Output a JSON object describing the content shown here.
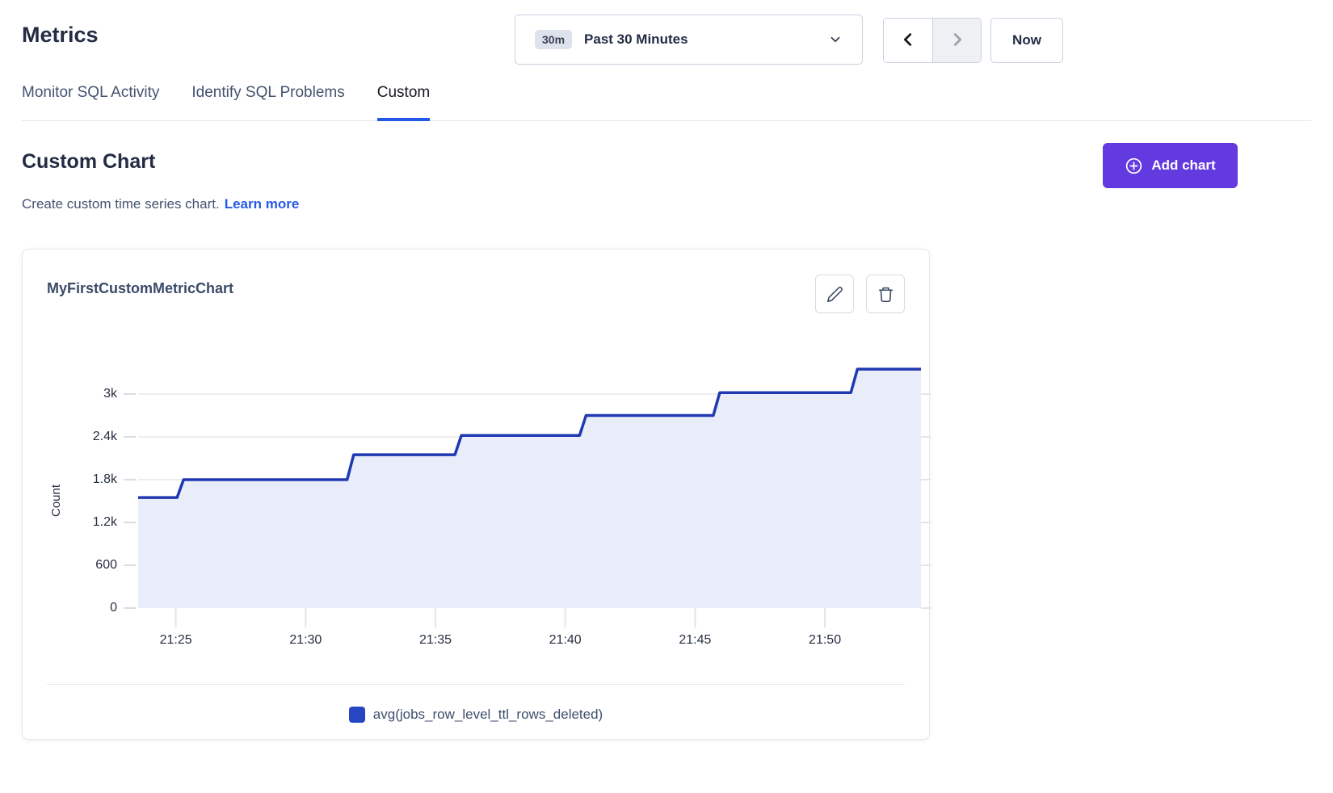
{
  "header": {
    "title": "Metrics",
    "time_picker": {
      "badge": "30m",
      "label": "Past 30 Minutes",
      "caret_icon": "chevron-down-icon"
    },
    "prev_icon": "chevron-left-icon",
    "next_icon": "chevron-right-icon",
    "next_disabled": true,
    "now_label": "Now"
  },
  "tabs": [
    {
      "label": "Monitor SQL Activity",
      "active": false
    },
    {
      "label": "Identify SQL Problems",
      "active": false
    },
    {
      "label": "Custom",
      "active": true
    }
  ],
  "section": {
    "title": "Custom Chart",
    "subtitle": "Create custom time series chart.",
    "learn_more": "Learn more",
    "add_chart_label": "Add chart",
    "add_chart_icon": "plus-circle-icon"
  },
  "card": {
    "edit_icon": "pencil-icon",
    "delete_icon": "trash-icon"
  },
  "colors": {
    "accent_purple": "#623ae0",
    "link_blue": "#2458e8",
    "line_blue": "#2039b2",
    "area_fill": "#e9edfa",
    "legend_swatch": "#2646c4",
    "gridline": "#e8e9ed",
    "tick": "#d9dce3"
  },
  "chart_data": {
    "type": "area",
    "title": "MyFirstCustomMetricChart",
    "xlabel": "",
    "ylabel": "Count",
    "grid": "horizontal",
    "legend_position": "bottom",
    "ylim": [
      0,
      3600
    ],
    "xlim_minutes_after_21h": [
      23.55,
      53.7
    ],
    "x_ticks": [
      {
        "label": "21:25",
        "minute": 25
      },
      {
        "label": "21:30",
        "minute": 30
      },
      {
        "label": "21:35",
        "minute": 35
      },
      {
        "label": "21:40",
        "minute": 40
      },
      {
        "label": "21:45",
        "minute": 45
      },
      {
        "label": "21:50",
        "minute": 50
      }
    ],
    "y_ticks": [
      {
        "label": "0",
        "value": 0
      },
      {
        "label": "600",
        "value": 600
      },
      {
        "label": "1.2k",
        "value": 1200
      },
      {
        "label": "1.8k",
        "value": 1800
      },
      {
        "label": "2.4k",
        "value": 2400
      },
      {
        "label": "3k",
        "value": 3000
      }
    ],
    "series": [
      {
        "name": "avg(jobs_row_level_ttl_rows_deleted)",
        "color": "#2646c4",
        "step_points_minute_value": [
          [
            23.55,
            1550
          ],
          [
            25.05,
            1550
          ],
          [
            25.3,
            1800
          ],
          [
            31.6,
            1800
          ],
          [
            31.85,
            2150
          ],
          [
            35.75,
            2150
          ],
          [
            36.0,
            2420
          ],
          [
            40.55,
            2420
          ],
          [
            40.8,
            2700
          ],
          [
            45.7,
            2700
          ],
          [
            45.95,
            3020
          ],
          [
            51.0,
            3020
          ],
          [
            51.25,
            3350
          ],
          [
            53.7,
            3350
          ]
        ]
      }
    ]
  }
}
